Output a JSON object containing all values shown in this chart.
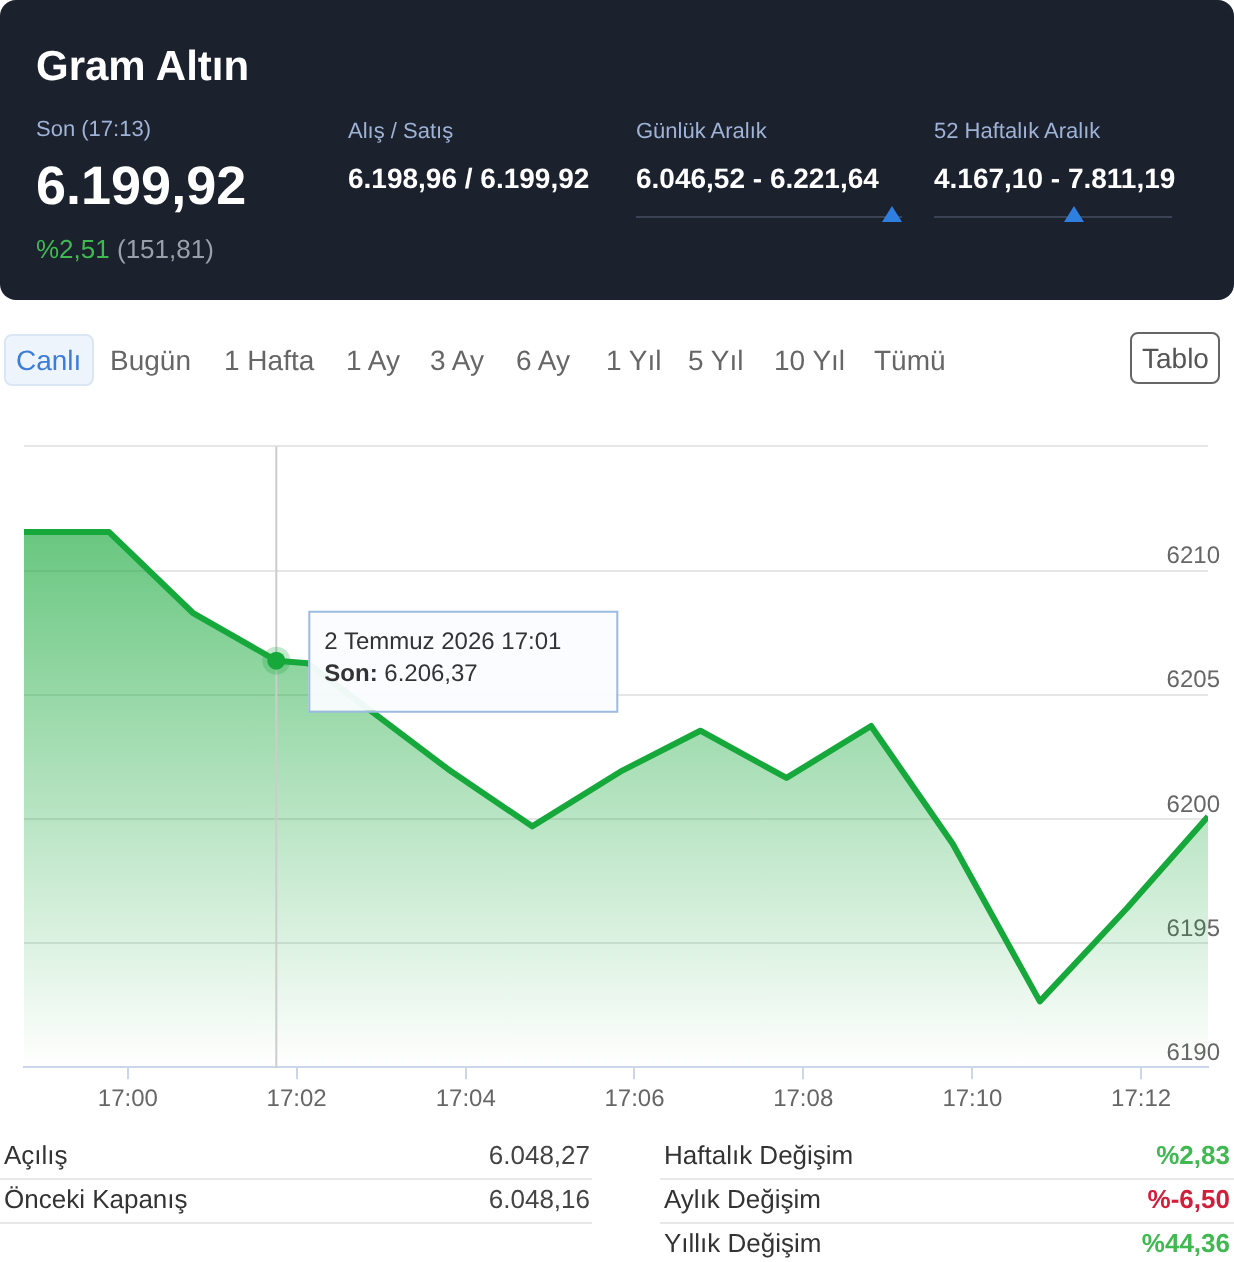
{
  "chart_data": {
    "type": "area",
    "title": "Gram Altın",
    "x": [
      16.9795,
      16.9963,
      17.0128,
      17.0293,
      17.0355,
      17.0632,
      17.0798,
      17.0972,
      17.113,
      17.13,
      17.1467,
      17.1628,
      17.18,
      17.1972,
      17.2132
    ],
    "series": [
      {
        "color": "#16a83a",
        "values": [
          6211.55,
          6211.55,
          6208.3,
          6206.37,
          6206.27,
          6202.0,
          6199.7,
          6201.9,
          6203.55,
          6201.65,
          6203.74,
          6199.0,
          6192.65,
          6196.4,
          6200.1
        ]
      }
    ],
    "xlim": [
      16.9795,
      17.2132
    ],
    "xticks": [
      {
        "value": 17,
        "label": "17:00"
      },
      {
        "value": 17.0333,
        "label": "17:02"
      },
      {
        "value": 17.0667,
        "label": "17:04"
      },
      {
        "value": 17.1,
        "label": "17:06"
      },
      {
        "value": 17.1333,
        "label": "17:08"
      },
      {
        "value": 17.1667,
        "label": "17:10"
      },
      {
        "value": 17.2,
        "label": "17:12"
      }
    ],
    "ylim": [
      6190,
      6215
    ],
    "yticks": [
      6190,
      6195,
      6200,
      6205,
      6210,
      {
        "value": 6215,
        "label": null
      }
    ],
    "grid": "y",
    "legend": false,
    "marker": "none",
    "line_style": "solid",
    "ref_lines": [
      {
        "axis": "x",
        "value": 17.0293,
        "color": "#cccccc"
      }
    ],
    "annotations": [
      "Son (17:13)",
      "6.199,92",
      "%2,51",
      "(151,81)",
      "Alış / Satış",
      "6.198,96 / 6.199,92",
      "Günlük Aralık",
      "6.046,52 - 6.221,64",
      "52 Haftalık Aralık",
      "4.167,10 - 7.811,19",
      "Canlı",
      "Bugün",
      "1 Hafta",
      "1 Ay",
      "3 Ay",
      "6 Ay",
      "1 Yıl",
      "5 Yıl",
      "10 Yıl",
      "Tümü",
      "Tablo",
      "Açılış",
      "6.048,27",
      "Önceki Kapanış",
      "6.048,16",
      "Haftalık Değişim",
      "%2,83",
      "Aylık Değişim",
      "%-6,50",
      "Yıllık Değişim",
      "%44,36",
      {
        "text": "2 Temmuz 2026 17:01\nSon: 6.206,37",
        "x": 17.0293,
        "y": 6206.37
      }
    ]
  }
}
